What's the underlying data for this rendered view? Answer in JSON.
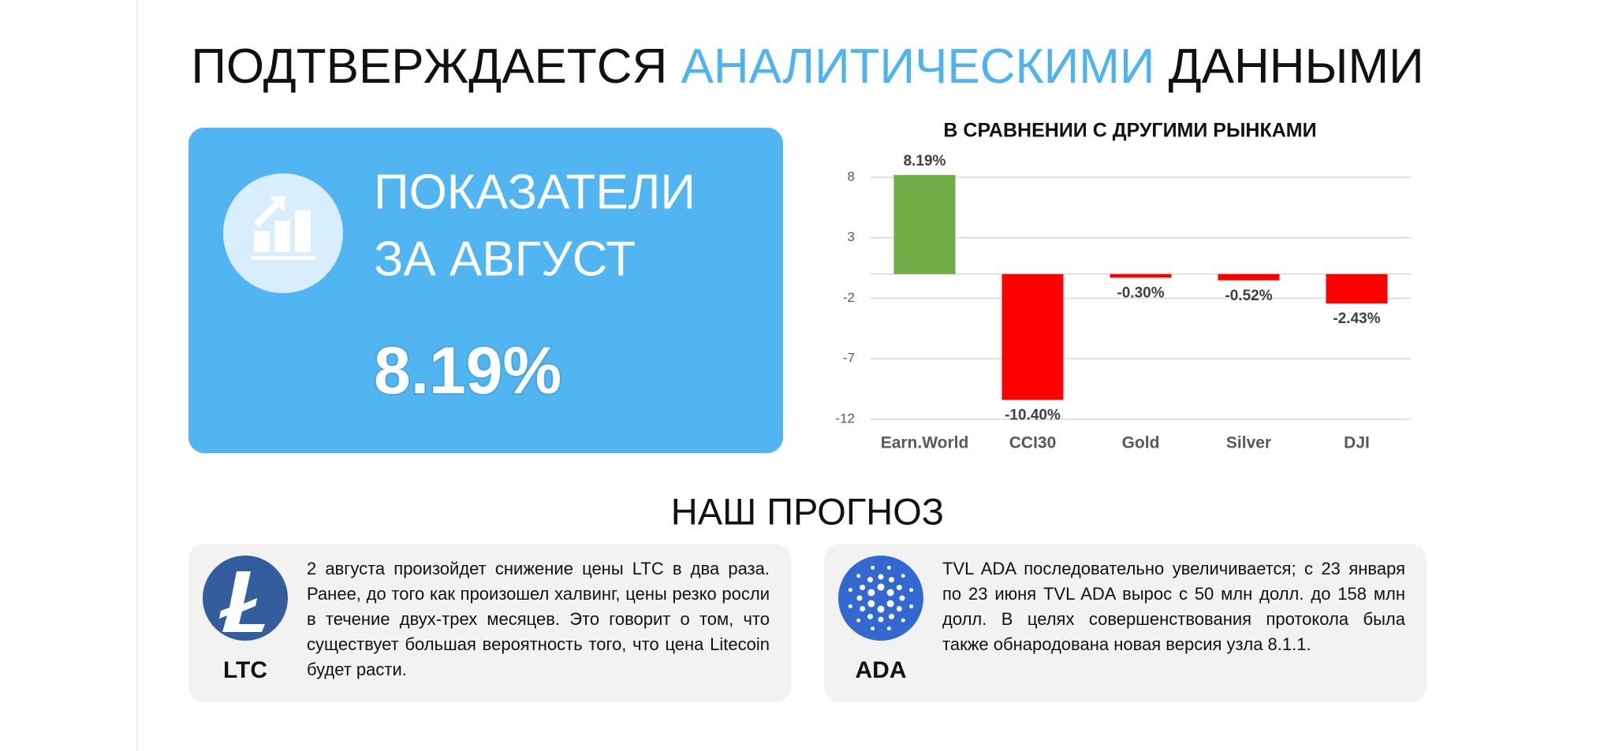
{
  "header": {
    "title_parts": [
      "ПОДТВЕРЖДАЕТСЯ",
      "АНАЛИТИЧЕСКИМИ",
      "ДАННЫМИ"
    ]
  },
  "highlight": {
    "line1": "ПОКАЗАТЕЛИ",
    "line2": "ЗА АВГУСТ",
    "value": "8.19%"
  },
  "chart_data": {
    "type": "bar",
    "title": "В СРАВНЕНИИ С ДРУГИМИ РЫНКАМИ",
    "categories": [
      "Earn.World",
      "CCI30",
      "Gold",
      "Silver",
      "DJI"
    ],
    "values": [
      8.19,
      -10.4,
      -0.3,
      -0.52,
      -2.43
    ],
    "value_labels": [
      "8.19%",
      "-10.40%",
      "-0.30%",
      "-0.52%",
      "-2.43%"
    ],
    "colors": [
      "#70ad47",
      "#ff0000",
      "#ff0000",
      "#ff0000",
      "#ff0000"
    ],
    "ylim": [
      -12,
      8
    ],
    "yticks": [
      8,
      3,
      -2,
      -7,
      -12
    ],
    "grid": true
  },
  "forecast": {
    "title": "НАШ ПРОГНОЗ",
    "cards": [
      {
        "ticker": "LTC",
        "text": "2 августа произойдет снижение цены LTC в два раза. Ранее, до того как произошел халвинг, цены резко росли в течение двух-трех месяцев. Это говорит о том, что существует большая вероятность того, что цена Litecoin будет расти."
      },
      {
        "ticker": "ADA",
        "text": "TVL ADA последовательно увеличивается; с 23 января по 23 июня TVL ADA вырос с 50 млн долл. до 158 млн долл. В целях совершенствования протокола была также обнародована новая версия узла 8.1.1."
      }
    ]
  }
}
